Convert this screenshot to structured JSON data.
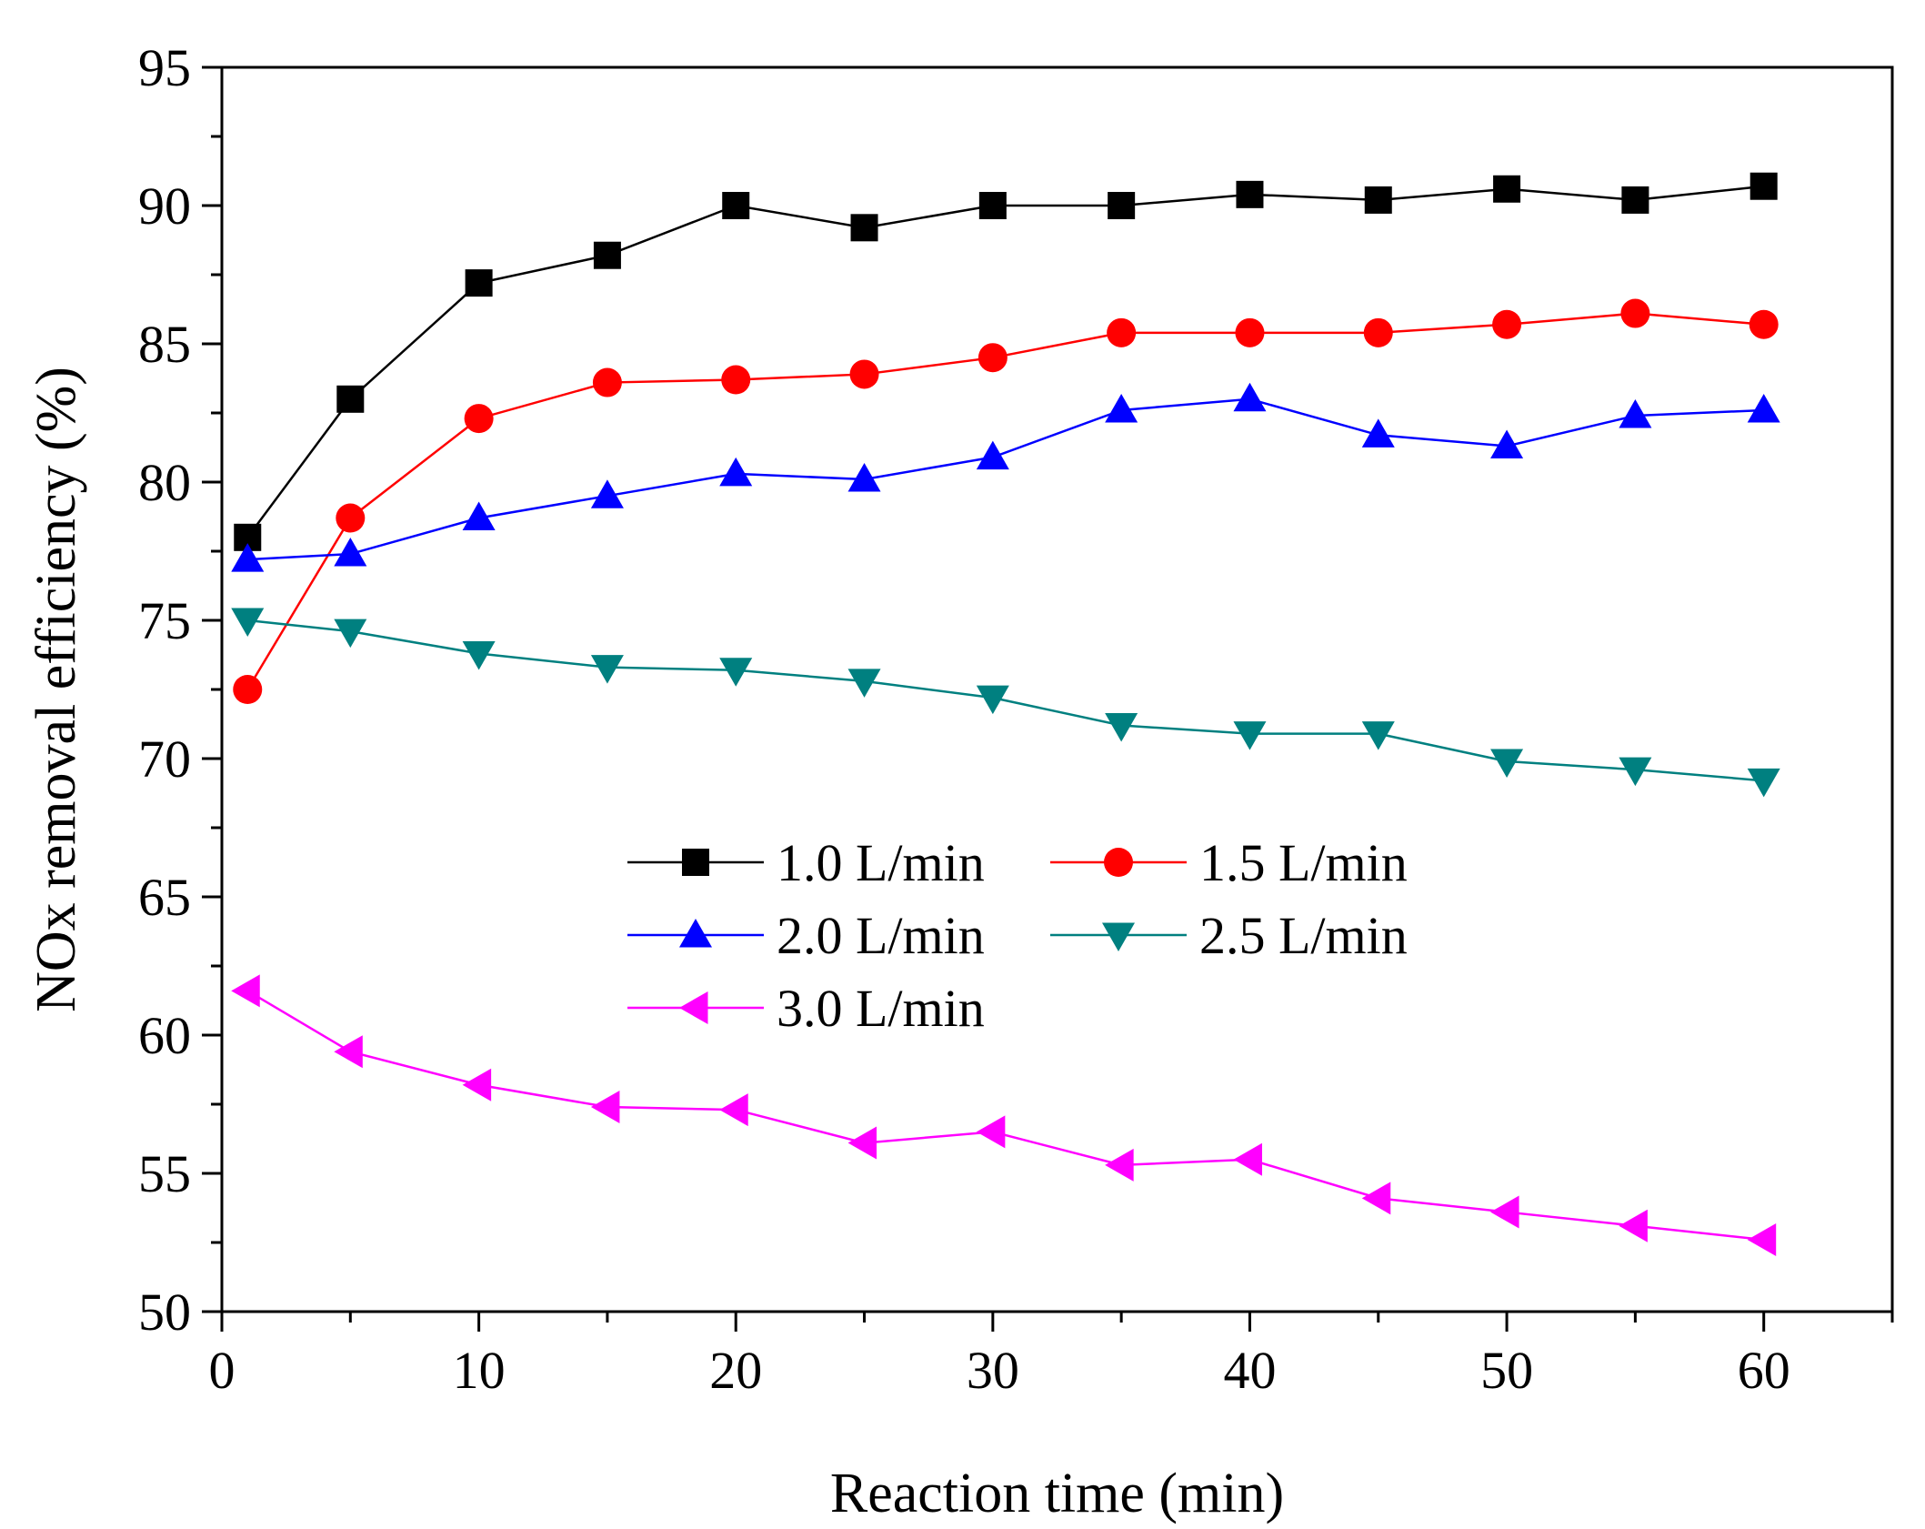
{
  "chart_data": {
    "type": "line",
    "title": "",
    "xlabel": "Reaction time (min)",
    "ylabel": "NOx removal efficiency (%)",
    "xlim": [
      0,
      65
    ],
    "ylim": [
      50,
      95
    ],
    "x_ticks": [
      0,
      10,
      20,
      30,
      40,
      50,
      60
    ],
    "y_ticks": [
      50,
      55,
      60,
      65,
      70,
      75,
      80,
      85,
      90,
      95
    ],
    "x": [
      1,
      5,
      10,
      15,
      20,
      25,
      30,
      35,
      40,
      45,
      50,
      55,
      60
    ],
    "series": [
      {
        "name": "1.0 L/min",
        "color": "#000000",
        "marker": "square",
        "values": [
          78.0,
          83.0,
          87.2,
          88.2,
          90.0,
          89.2,
          90.0,
          90.0,
          90.4,
          90.2,
          90.6,
          90.2,
          90.7
        ]
      },
      {
        "name": "1.5 L/min",
        "color": "#ff0000",
        "marker": "circle",
        "values": [
          72.5,
          78.7,
          82.3,
          83.6,
          83.7,
          83.9,
          84.5,
          85.4,
          85.4,
          85.4,
          85.7,
          86.1,
          85.7
        ]
      },
      {
        "name": "2.0 L/min",
        "color": "#0000ff",
        "marker": "triangle-up",
        "values": [
          77.2,
          77.4,
          78.7,
          79.5,
          80.3,
          80.1,
          80.9,
          82.6,
          83.0,
          81.7,
          81.3,
          82.4,
          82.6
        ]
      },
      {
        "name": "2.5 L/min",
        "color": "#008080",
        "marker": "triangle-down",
        "values": [
          75.0,
          74.6,
          73.8,
          73.3,
          73.2,
          72.8,
          72.2,
          71.2,
          70.9,
          70.9,
          69.9,
          69.6,
          69.2
        ]
      },
      {
        "name": "3.0 L/min",
        "color": "#ff00ff",
        "marker": "triangle-left",
        "values": [
          61.6,
          59.4,
          58.2,
          57.4,
          57.3,
          56.1,
          56.5,
          55.3,
          55.5,
          54.1,
          53.6,
          53.1,
          52.6
        ]
      }
    ],
    "legend": {
      "placement": "center-left",
      "columns": 2
    }
  }
}
